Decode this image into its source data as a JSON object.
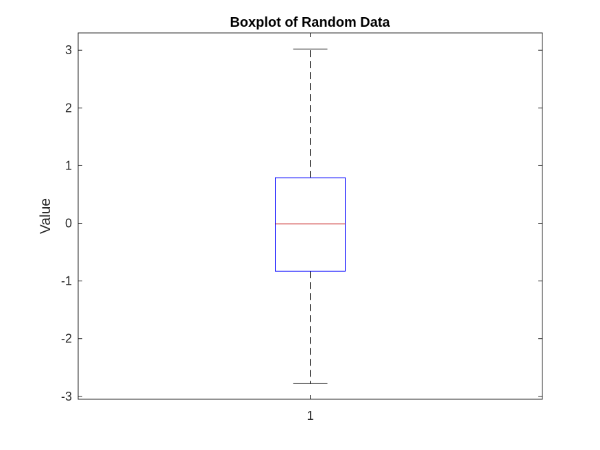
{
  "chart_data": {
    "type": "boxplot",
    "title": "Boxplot of Random Data",
    "xlabel": "",
    "ylabel": "Value",
    "ylim": [
      -3.05,
      3.3
    ],
    "yticks": [
      -3,
      -2,
      -1,
      0,
      1,
      2,
      3
    ],
    "ytick_labels": [
      "-3",
      "-2",
      "-1",
      "0",
      "1",
      "2",
      "3"
    ],
    "categories": [
      "1"
    ],
    "boxes": [
      {
        "category": "1",
        "whisker_low": -2.78,
        "q1": -0.83,
        "median": -0.01,
        "q3": 0.79,
        "whisker_high": 3.02
      }
    ],
    "grid": false,
    "colors": {
      "box": "#0000ff",
      "median": "#c00000",
      "whisker": "#000000",
      "axis": "#262626"
    }
  }
}
